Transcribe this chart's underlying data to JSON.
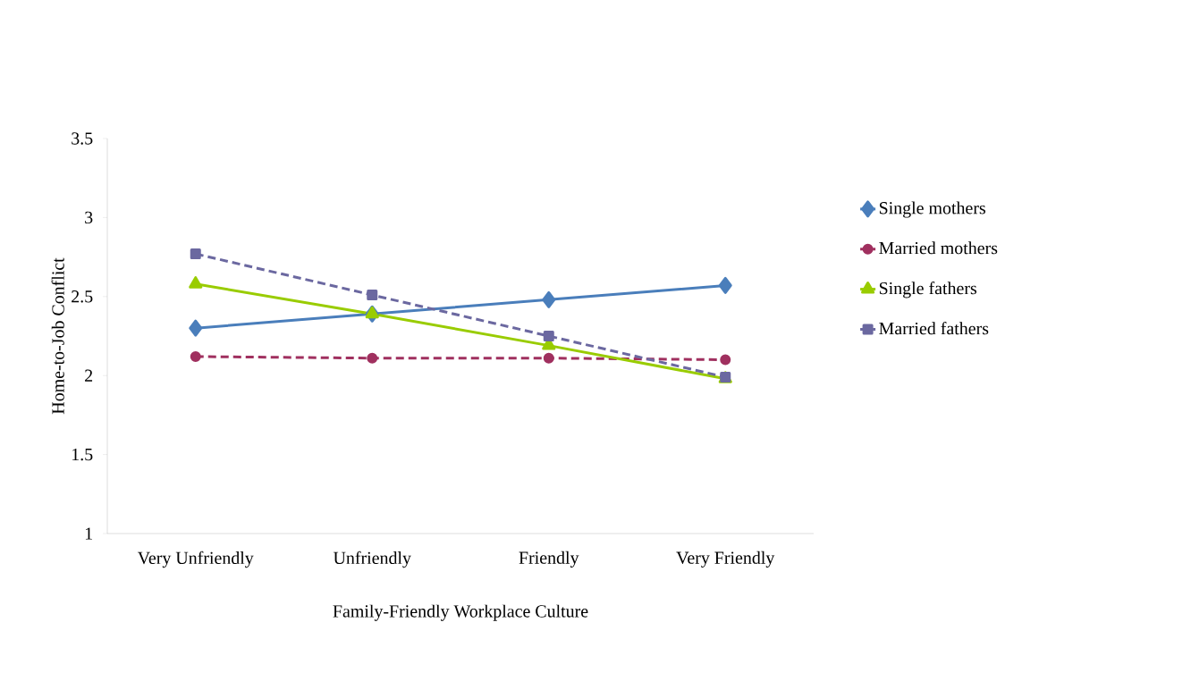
{
  "chart_data": {
    "type": "line",
    "xlabel": "Family-Friendly Workplace Culture",
    "ylabel": "Home-to-Job Conflict",
    "categories": [
      "Very Unfriendly",
      "Unfriendly",
      "Friendly",
      "Very Friendly"
    ],
    "series": [
      {
        "name": "Single mothers",
        "color": "#4a7ebb",
        "marker": "diamond",
        "line_style": "solid",
        "values": [
          2.3,
          2.39,
          2.48,
          2.57
        ]
      },
      {
        "name": "Married mothers",
        "color": "#a0305f",
        "marker": "circle",
        "line_style": "dashed",
        "values": [
          2.12,
          2.11,
          2.11,
          2.1
        ]
      },
      {
        "name": "Single fathers",
        "color": "#99cc00",
        "marker": "triangle",
        "line_style": "solid",
        "values": [
          2.58,
          2.39,
          2.19,
          1.98
        ]
      },
      {
        "name": "Married fathers",
        "color": "#6b68a0",
        "marker": "square",
        "line_style": "dashed",
        "values": [
          2.77,
          2.51,
          2.25,
          1.99
        ]
      }
    ],
    "ylim": [
      1,
      3.5
    ],
    "yticks": [
      1,
      1.5,
      2,
      2.5,
      3,
      3.5
    ],
    "legend": "right",
    "grid": false
  }
}
